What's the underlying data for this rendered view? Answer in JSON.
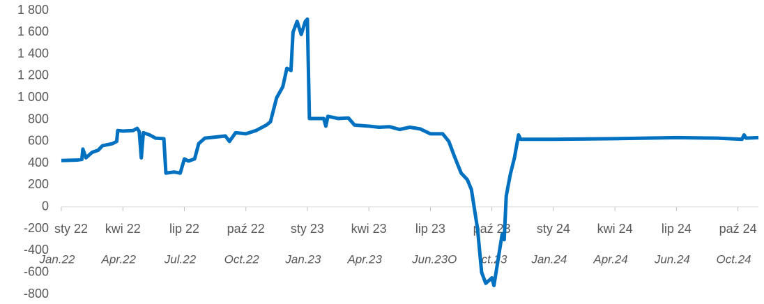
{
  "chart_data": {
    "type": "line",
    "xlim": [
      0,
      34
    ],
    "xticks": [
      {
        "value": 0,
        "label": "sty 22"
      },
      {
        "value": 3,
        "label": "kwi 22"
      },
      {
        "value": 6,
        "label": "lip 22"
      },
      {
        "value": 9,
        "label": "paź 22"
      },
      {
        "value": 12,
        "label": "sty 23"
      },
      {
        "value": 15,
        "label": "kwi 23"
      },
      {
        "value": 18,
        "label": "lip 23"
      },
      {
        "value": 21,
        "label": "paź 23"
      },
      {
        "value": 24,
        "label": "sty 24"
      },
      {
        "value": 27,
        "label": "kwi 24"
      },
      {
        "value": 30,
        "label": "lip 24"
      },
      {
        "value": 33,
        "label": "paź 24"
      }
    ],
    "secondary_labels": [
      "Jan.22",
      "Apr.22",
      "Jul.22",
      "Oct.22",
      "Jan.23",
      "Apr.23",
      "Jun.23O",
      "ct.23",
      "Jan.24",
      "Apr.24",
      "Jun.24",
      "Oct.24"
    ],
    "ylim": [
      -800,
      1800
    ],
    "yticks": [
      -800,
      -600,
      -400,
      -200,
      0,
      200,
      400,
      600,
      800,
      {
        "value": 1000,
        "label": "1 000"
      },
      {
        "value": 1200,
        "label": "1 200"
      },
      {
        "value": 1400,
        "label": "1 400"
      },
      {
        "value": 1600,
        "label": "1 600"
      },
      {
        "value": 1800,
        "label": "1 800"
      }
    ],
    "grid": false,
    "x": [
      0,
      0.8,
      1.0,
      1.05,
      1.2,
      1.5,
      1.8,
      2.0,
      2.5,
      2.7,
      2.75,
      3.0,
      3.5,
      3.7,
      3.8,
      3.9,
      4.0,
      4.3,
      4.6,
      5.0,
      5.1,
      5.5,
      5.8,
      6.0,
      6.2,
      6.5,
      6.7,
      7.0,
      7.5,
      8.0,
      8.2,
      8.5,
      9.0,
      9.5,
      10.0,
      10.2,
      10.5,
      10.8,
      11.0,
      11.2,
      11.3,
      11.5,
      11.7,
      11.9,
      12.0,
      12.1,
      12.8,
      12.9,
      13.0,
      13.5,
      14.0,
      14.3,
      15.0,
      15.5,
      16.0,
      16.5,
      17.0,
      17.5,
      18.0,
      18.6,
      18.9,
      19.2,
      19.5,
      19.8,
      20.0,
      20.3,
      20.5,
      20.7,
      21.0,
      21.1,
      21.5,
      21.6,
      21.7,
      21.9,
      22.1,
      22.3,
      22.4,
      24,
      27,
      30,
      32,
      33.2,
      33.3,
      33.4,
      34
    ],
    "series": [
      {
        "color": "#0070c0",
        "values": [
          425,
          430,
          435,
          530,
          450,
          500,
          520,
          560,
          580,
          600,
          700,
          695,
          700,
          720,
          690,
          450,
          680,
          660,
          630,
          625,
          310,
          320,
          310,
          440,
          420,
          440,
          580,
          630,
          640,
          650,
          600,
          680,
          670,
          700,
          750,
          780,
          1000,
          1100,
          1270,
          1250,
          1600,
          1700,
          1580,
          1700,
          1720,
          810,
          810,
          740,
          830,
          810,
          815,
          750,
          740,
          730,
          735,
          710,
          730,
          715,
          670,
          670,
          600,
          450,
          310,
          250,
          160,
          -200,
          -600,
          -700,
          -650,
          -720,
          -250,
          -300,
          100,
          300,
          450,
          660,
          620,
          620,
          625,
          635,
          630,
          620,
          660,
          630,
          635
        ]
      }
    ]
  }
}
